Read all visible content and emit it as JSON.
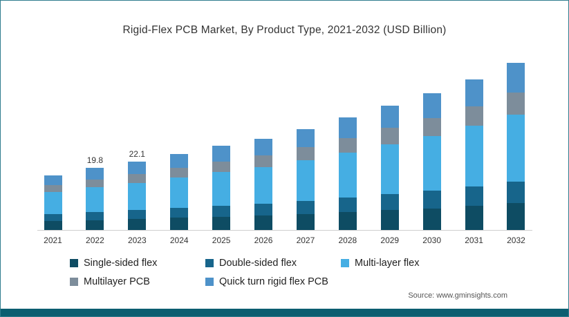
{
  "source": "Source: www.gminsights.com",
  "accent_color": "#0c5e70",
  "chart_data": {
    "type": "bar",
    "stacked": true,
    "title": "Rigid-Flex PCB Market, By Product Type, 2021-2032 (USD Billion)",
    "xlabel": "",
    "ylabel": "USD Billion",
    "legend_position": "bottom",
    "grid": false,
    "categories": [
      "2021",
      "2022",
      "2023",
      "2024",
      "2025",
      "2026",
      "2027",
      "2028",
      "2029",
      "2030",
      "2031",
      "2032"
    ],
    "series": [
      {
        "name": "Single-sided flex",
        "color": "#0e4c63",
        "values": [
          2.8,
          3.2,
          3.5,
          3.9,
          4.3,
          4.7,
          5.2,
          5.8,
          6.4,
          7.0,
          7.8,
          8.6
        ]
      },
      {
        "name": "Double-sided flex",
        "color": "#17658b",
        "values": [
          2.3,
          2.6,
          2.9,
          3.2,
          3.5,
          3.8,
          4.2,
          4.7,
          5.2,
          5.7,
          6.3,
          7.0
        ]
      },
      {
        "name": "Multi-layer flex",
        "color": "#45aee3",
        "values": [
          7.1,
          7.9,
          8.8,
          9.8,
          10.8,
          11.8,
          13.0,
          14.4,
          16.0,
          17.6,
          19.4,
          21.6
        ]
      },
      {
        "name": "Multilayer PCB",
        "color": "#7d8d9b",
        "values": [
          2.3,
          2.6,
          2.9,
          3.2,
          3.5,
          3.8,
          4.2,
          4.7,
          5.2,
          5.7,
          6.3,
          7.0
        ]
      },
      {
        "name": "Quick turn rigid flex PCB",
        "color": "#4e92c9",
        "values": [
          3.2,
          3.6,
          4.0,
          4.4,
          4.9,
          5.3,
          5.9,
          6.5,
          7.2,
          7.9,
          8.7,
          9.7
        ]
      }
    ],
    "totals": [
      17.7,
      19.9,
      22.1,
      24.5,
      27.0,
      29.4,
      32.5,
      36.1,
      40.0,
      43.9,
      48.5,
      53.9
    ],
    "data_labels": [
      null,
      "19.8",
      "22.1",
      null,
      null,
      null,
      null,
      null,
      null,
      null,
      null,
      null
    ]
  }
}
